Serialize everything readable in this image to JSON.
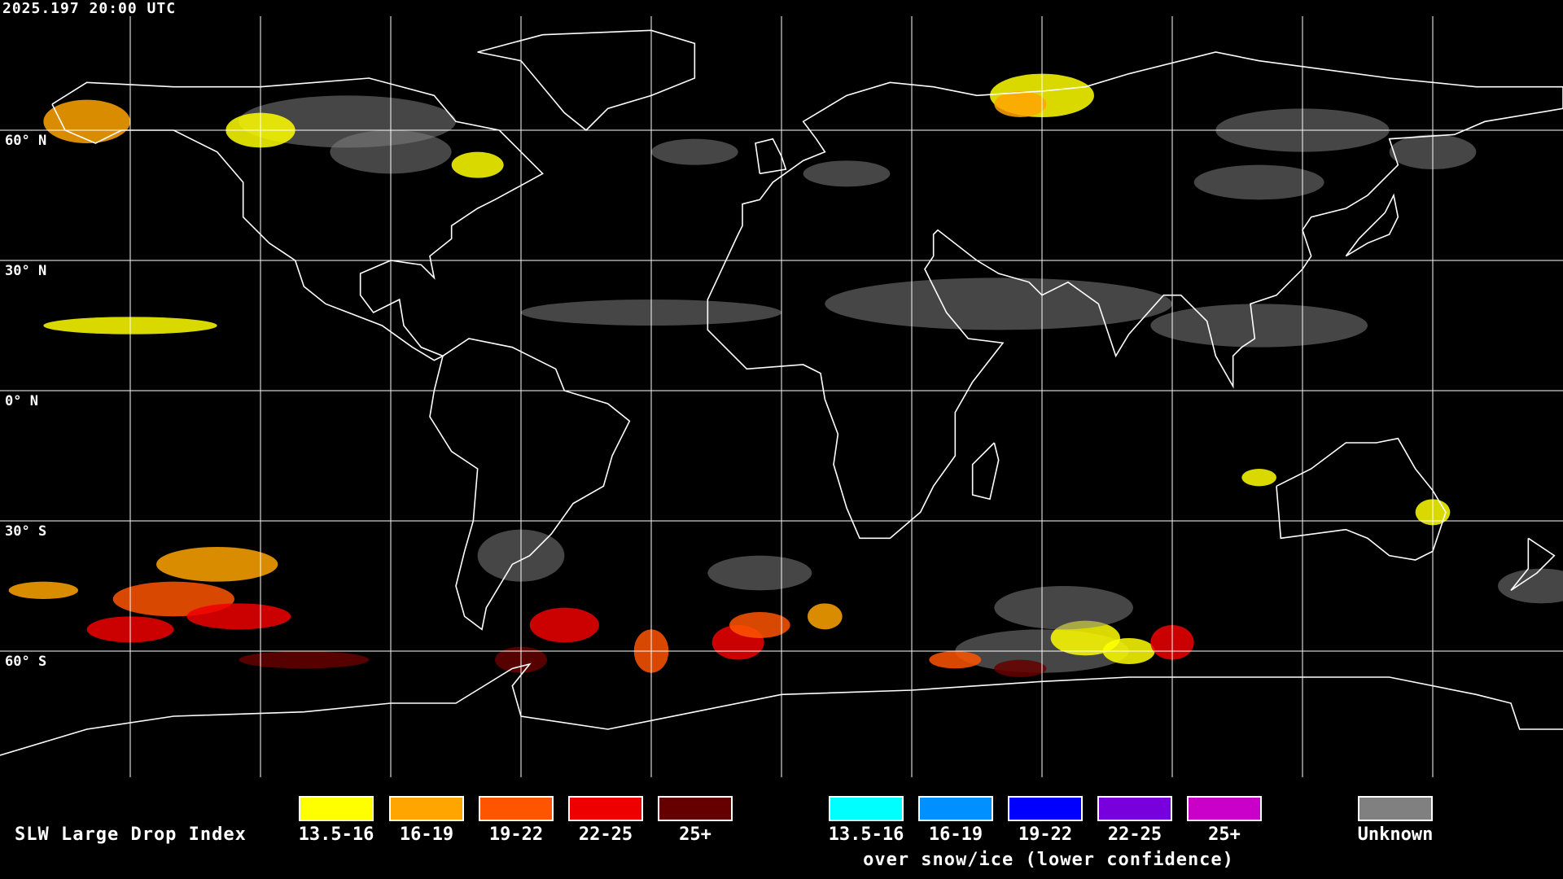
{
  "header": {
    "timestamp": "2025.197 20:00 UTC"
  },
  "map": {
    "projection": "equirectangular",
    "grid_spacing_deg": 30,
    "lat_labels": [
      "60° N",
      "30° N",
      "0° N",
      "30° S",
      "60° S"
    ],
    "background": "#000000",
    "coastline_color": "#ffffff",
    "grid_color": "#ffffff"
  },
  "legend": {
    "title": "SLW Large Drop Index",
    "standard": [
      {
        "label": "13.5-16",
        "color": "#ffff00"
      },
      {
        "label": "16-19",
        "color": "#ffa500"
      },
      {
        "label": "19-22",
        "color": "#ff5500"
      },
      {
        "label": "22-25",
        "color": "#ee0000"
      },
      {
        "label": "25+",
        "color": "#650000"
      }
    ],
    "snow_ice": [
      {
        "label": "13.5-16",
        "color": "#00ffff"
      },
      {
        "label": "16-19",
        "color": "#0090ff"
      },
      {
        "label": "19-22",
        "color": "#0000ff"
      },
      {
        "label": "22-25",
        "color": "#7700dd"
      },
      {
        "label": "25+",
        "color": "#c800c8"
      }
    ],
    "snow_ice_caption": "over snow/ice (lower confidence)",
    "unknown": {
      "label": "Unknown",
      "color": "#808080"
    }
  }
}
